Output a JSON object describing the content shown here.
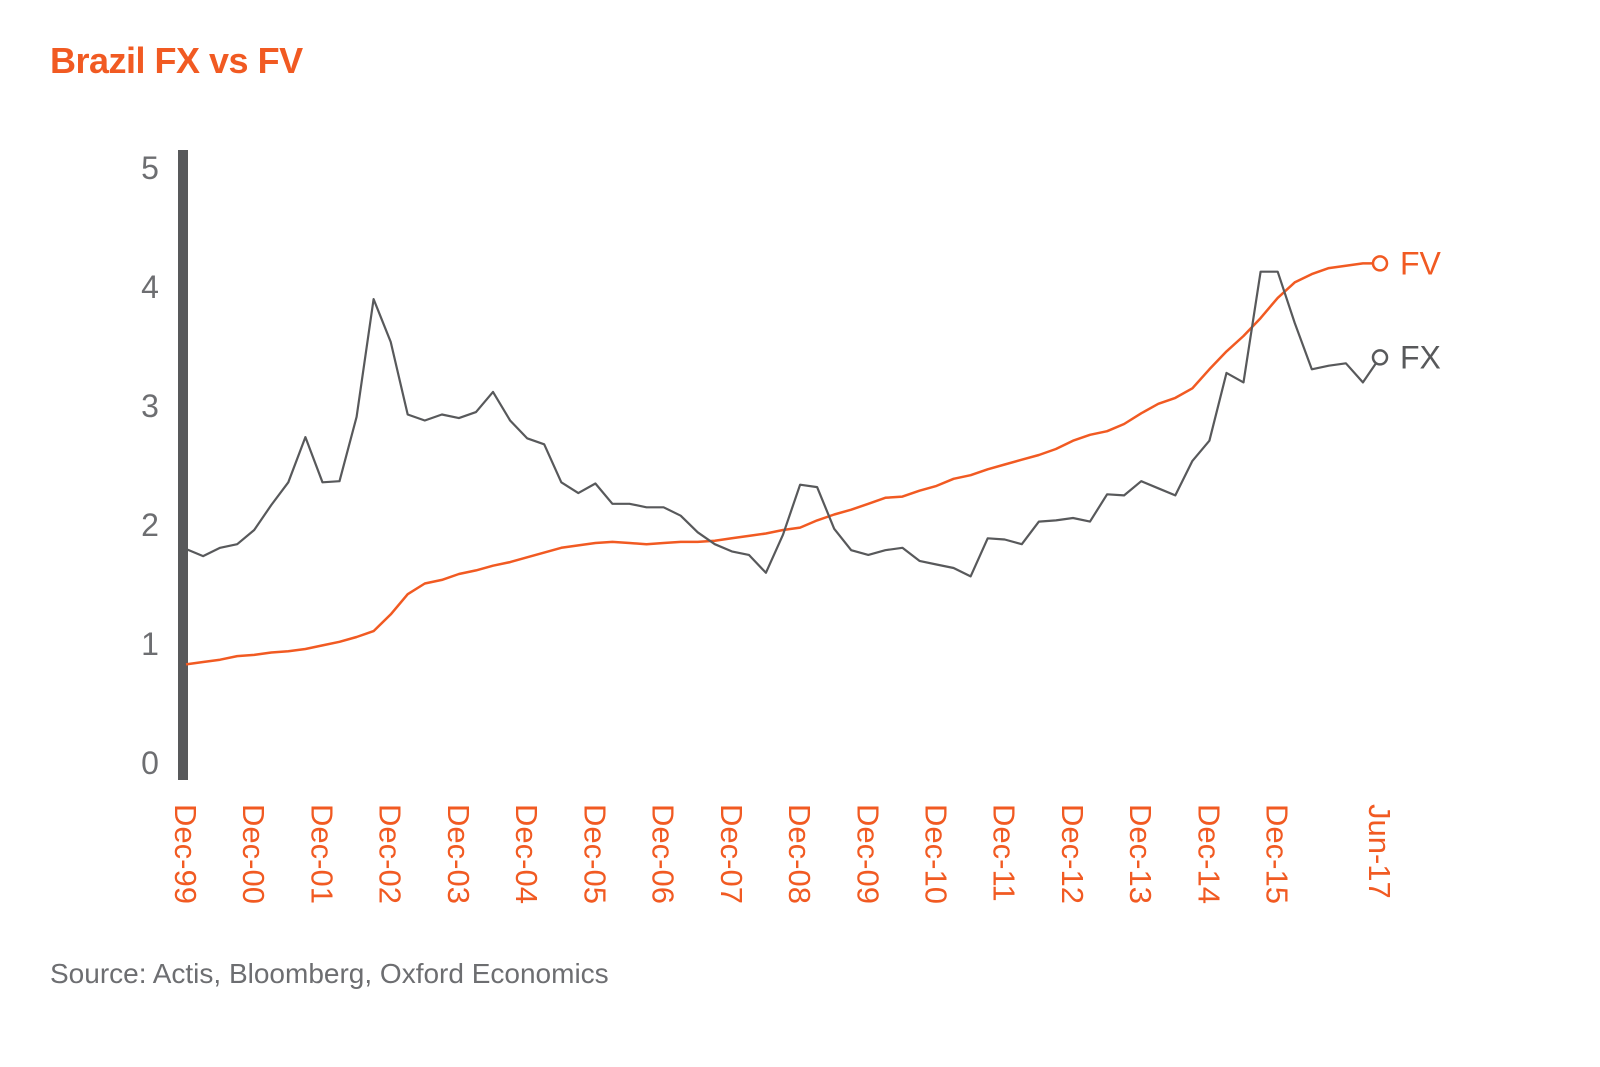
{
  "title": "Brazil FX vs FV",
  "source": "Source: Actis, Bloomberg, Oxford Economics",
  "colors": {
    "fv": "#f15a22",
    "fx": "#58595b",
    "axis": "#58595b",
    "text": "#6d6e71"
  },
  "chart_data": {
    "type": "line",
    "title": "Brazil FX vs FV",
    "ylim": [
      0,
      5
    ],
    "yticks": [
      0,
      1,
      2,
      3,
      4,
      5
    ],
    "grid": false,
    "legend": "end-of-line labels",
    "xlim": [
      "Dec-99",
      "Jun-17"
    ],
    "xticks": [
      "Dec-99",
      "Dec-00",
      "Dec-01",
      "Dec-02",
      "Dec-03",
      "Dec-04",
      "Dec-05",
      "Dec-06",
      "Dec-07",
      "Dec-08",
      "Dec-09",
      "Dec-10",
      "Dec-11",
      "Dec-12",
      "Dec-13",
      "Dec-14",
      "Dec-15",
      "Jun-17"
    ],
    "x": [
      "Dec-99",
      "Mar-00",
      "Jun-00",
      "Sep-00",
      "Dec-00",
      "Mar-01",
      "Jun-01",
      "Sep-01",
      "Dec-01",
      "Mar-02",
      "Jun-02",
      "Sep-02",
      "Dec-02",
      "Mar-03",
      "Jun-03",
      "Sep-03",
      "Dec-03",
      "Mar-04",
      "Jun-04",
      "Sep-04",
      "Dec-04",
      "Mar-05",
      "Jun-05",
      "Sep-05",
      "Dec-05",
      "Mar-06",
      "Jun-06",
      "Sep-06",
      "Dec-06",
      "Mar-07",
      "Jun-07",
      "Sep-07",
      "Dec-07",
      "Mar-08",
      "Jun-08",
      "Sep-08",
      "Dec-08",
      "Mar-09",
      "Jun-09",
      "Sep-09",
      "Dec-09",
      "Mar-10",
      "Jun-10",
      "Sep-10",
      "Dec-10",
      "Mar-11",
      "Jun-11",
      "Sep-11",
      "Dec-11",
      "Mar-12",
      "Jun-12",
      "Sep-12",
      "Dec-12",
      "Mar-13",
      "Jun-13",
      "Sep-13",
      "Dec-13",
      "Mar-14",
      "Jun-14",
      "Sep-14",
      "Dec-14",
      "Mar-15",
      "Jun-15",
      "Sep-15",
      "Dec-15",
      "Mar-16",
      "Jun-16",
      "Sep-16",
      "Dec-16",
      "Mar-17",
      "Jun-17"
    ],
    "series": [
      {
        "name": "FX",
        "color": "#58595b",
        "values": [
          1.79,
          1.73,
          1.8,
          1.83,
          1.95,
          2.16,
          2.35,
          2.73,
          2.35,
          2.36,
          2.9,
          3.89,
          3.53,
          2.92,
          2.87,
          2.92,
          2.89,
          2.94,
          3.11,
          2.87,
          2.72,
          2.67,
          2.35,
          2.26,
          2.34,
          2.17,
          2.17,
          2.14,
          2.14,
          2.07,
          1.93,
          1.83,
          1.77,
          1.74,
          1.59,
          1.91,
          2.33,
          2.31,
          1.96,
          1.78,
          1.74,
          1.78,
          1.8,
          1.69,
          1.66,
          1.63,
          1.56,
          1.88,
          1.87,
          1.83,
          2.02,
          2.03,
          2.05,
          2.02,
          2.25,
          2.24,
          2.36,
          2.3,
          2.24,
          2.53,
          2.7,
          3.27,
          3.19,
          4.12,
          4.12,
          3.69,
          3.3,
          3.33,
          3.35,
          3.19,
          3.4
        ]
      },
      {
        "name": "FV",
        "color": "#f15a22",
        "values": [
          0.82,
          0.84,
          0.86,
          0.89,
          0.9,
          0.92,
          0.93,
          0.95,
          0.98,
          1.01,
          1.05,
          1.1,
          1.24,
          1.41,
          1.5,
          1.53,
          1.58,
          1.61,
          1.65,
          1.68,
          1.72,
          1.76,
          1.8,
          1.82,
          1.84,
          1.85,
          1.84,
          1.83,
          1.84,
          1.85,
          1.85,
          1.86,
          1.88,
          1.9,
          1.92,
          1.95,
          1.97,
          2.03,
          2.08,
          2.12,
          2.17,
          2.22,
          2.23,
          2.28,
          2.32,
          2.38,
          2.41,
          2.46,
          2.5,
          2.54,
          2.58,
          2.63,
          2.7,
          2.75,
          2.78,
          2.84,
          2.93,
          3.01,
          3.06,
          3.14,
          3.3,
          3.45,
          3.58,
          3.73,
          3.9,
          4.03,
          4.1,
          4.15,
          4.17,
          4.19,
          4.19
        ]
      }
    ]
  }
}
